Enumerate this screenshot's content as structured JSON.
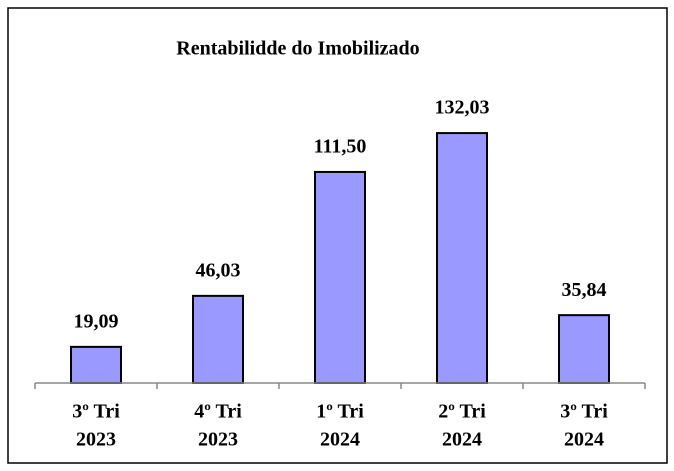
{
  "chart_data": {
    "type": "bar",
    "title": "Rentabilidde do Imobilizado",
    "categories": [
      [
        "3º Tri",
        "2023"
      ],
      [
        "4º Tri",
        "2023"
      ],
      [
        "1º Tri",
        "2024"
      ],
      [
        "2º Tri",
        "2024"
      ],
      [
        "3º Tri",
        "2024"
      ]
    ],
    "values": [
      19.09,
      46.03,
      111.5,
      132.03,
      35.84
    ],
    "value_labels": [
      "19,09",
      "46,03",
      "111,50",
      "132,03",
      "35,84"
    ],
    "color": "#9999ff",
    "ylim": [
      0,
      140
    ],
    "grid": false
  }
}
